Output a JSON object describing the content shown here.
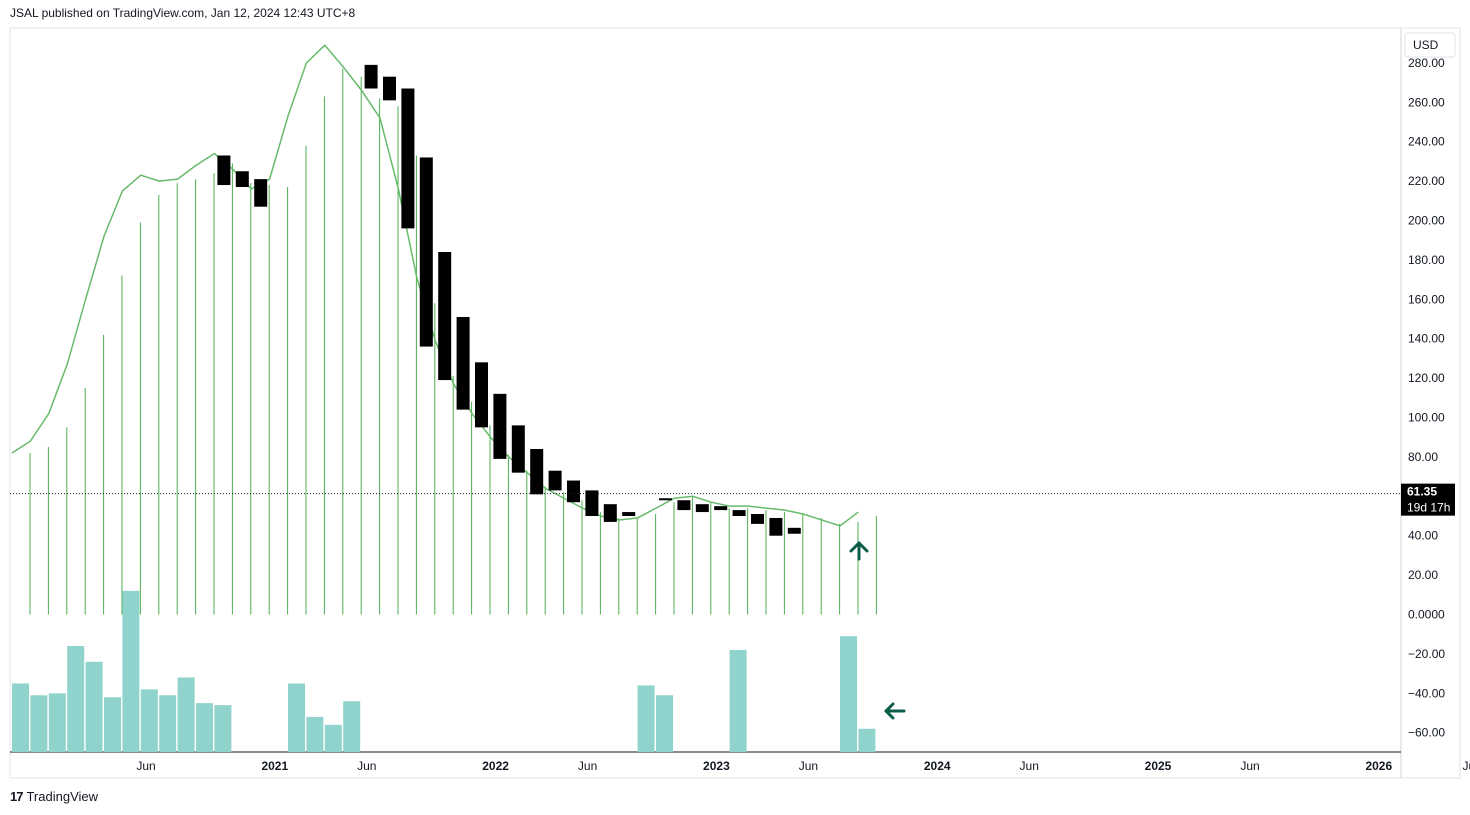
{
  "header": {
    "text": "JSAL published on TradingView.com, Jan 12, 2024 12:43 UTC+8"
  },
  "footer": {
    "logo": "17",
    "brand": "TradingView"
  },
  "currency_button": "USD",
  "colors": {
    "bar": "#000000",
    "ma_line": "#66bb6a",
    "volume_line": "#4caf50",
    "histogram": "#8fd3cc",
    "arrow": "#0b5d4a",
    "price_tag_bg": "#000000"
  },
  "chart_data": {
    "type": "candlestick",
    "title": "",
    "ylim": [
      -70,
      290
    ],
    "y_ticks": [
      "280.00",
      "260.00",
      "240.00",
      "220.00",
      "200.00",
      "180.00",
      "160.00",
      "140.00",
      "120.00",
      "100.00",
      "80.00",
      "40.00",
      "20.00",
      "0.0000",
      "−20.00",
      "−40.00",
      "−60.00"
    ],
    "y_tick_values": [
      280,
      260,
      240,
      220,
      200,
      180,
      160,
      140,
      120,
      100,
      80,
      40,
      20,
      0,
      -20,
      -40,
      -60
    ],
    "x_ticks": [
      {
        "label": "Jun",
        "bold": false,
        "month": 5
      },
      {
        "label": "2021",
        "bold": true,
        "month": 12
      },
      {
        "label": "Jun",
        "bold": false,
        "month": 17
      },
      {
        "label": "2022",
        "bold": true,
        "month": 24
      },
      {
        "label": "Jun",
        "bold": false,
        "month": 29
      },
      {
        "label": "2023",
        "bold": true,
        "month": 36
      },
      {
        "label": "Jun",
        "bold": false,
        "month": 41
      },
      {
        "label": "2024",
        "bold": true,
        "month": 48
      },
      {
        "label": "Jun",
        "bold": false,
        "month": 53
      },
      {
        "label": "2025",
        "bold": true,
        "month": 60
      },
      {
        "label": "Jun",
        "bold": false,
        "month": 65
      },
      {
        "label": "2026",
        "bold": true,
        "month": 72
      },
      {
        "label": "Jur",
        "bold": false,
        "month": 77
      }
    ],
    "candles": [
      {
        "m": 11,
        "o": 233,
        "c": 218
      },
      {
        "m": 12,
        "o": 225,
        "c": 217
      },
      {
        "m": 13,
        "o": 221,
        "c": 207
      },
      {
        "m": 19,
        "o": 279,
        "c": 267
      },
      {
        "m": 20,
        "o": 273,
        "c": 261
      },
      {
        "m": 21,
        "o": 267,
        "c": 196
      },
      {
        "m": 22,
        "o": 232,
        "c": 136
      },
      {
        "m": 23,
        "o": 184,
        "c": 119
      },
      {
        "m": 24,
        "o": 151,
        "c": 104
      },
      {
        "m": 25,
        "o": 128,
        "c": 95
      },
      {
        "m": 26,
        "o": 112,
        "c": 79
      },
      {
        "m": 27,
        "o": 96,
        "c": 72
      },
      {
        "m": 28,
        "o": 84,
        "c": 61
      },
      {
        "m": 29,
        "o": 73,
        "c": 63
      },
      {
        "m": 30,
        "o": 68,
        "c": 57
      },
      {
        "m": 31,
        "o": 63,
        "c": 50
      },
      {
        "m": 32,
        "o": 56,
        "c": 47
      },
      {
        "m": 33,
        "o": 52,
        "c": 50
      },
      {
        "m": 35,
        "o": 59,
        "c": 59
      },
      {
        "m": 36,
        "o": 58,
        "c": 53
      },
      {
        "m": 37,
        "o": 56,
        "c": 52
      },
      {
        "m": 38,
        "o": 55,
        "c": 53
      },
      {
        "m": 39,
        "o": 53,
        "c": 50
      },
      {
        "m": 40,
        "o": 51,
        "c": 46
      },
      {
        "m": 41,
        "o": 49,
        "c": 40
      },
      {
        "m": 42,
        "o": 44,
        "c": 41
      }
    ],
    "ma_series": {
      "months": [
        0,
        1,
        2,
        3,
        4,
        5,
        6,
        7,
        8,
        9,
        10,
        11,
        12,
        13,
        14,
        15,
        16,
        17,
        18,
        19,
        20,
        21,
        22,
        23,
        24,
        25,
        26,
        27,
        28,
        29,
        30,
        31,
        32,
        33,
        34,
        35,
        36,
        37,
        38,
        39,
        40,
        41,
        42,
        43,
        44,
        45,
        46
      ],
      "values": [
        82,
        88,
        102,
        127,
        160,
        192,
        215,
        223,
        220,
        221,
        228,
        234,
        226,
        216,
        221,
        253,
        280,
        289,
        278,
        266,
        252,
        216,
        171,
        139,
        117,
        102,
        90,
        80,
        72,
        64,
        59,
        54,
        50,
        48,
        49,
        54,
        59,
        60,
        57,
        55,
        55,
        54,
        53,
        51,
        48,
        45,
        52
      ]
    },
    "volume_lines": {
      "months": [
        0,
        1,
        2,
        3,
        4,
        5,
        6,
        7,
        8,
        9,
        10,
        11,
        12,
        13,
        14,
        15,
        16,
        17,
        18,
        19,
        20,
        21,
        22,
        23,
        24,
        25,
        26,
        27,
        28,
        29,
        30,
        31,
        32,
        33,
        34,
        35,
        36,
        37,
        38,
        39,
        40,
        41,
        42,
        43,
        44,
        45,
        46
      ],
      "heights": [
        82,
        85,
        95,
        115,
        142,
        172,
        199,
        213,
        219,
        221,
        224,
        229,
        219,
        218,
        217,
        238,
        263,
        277,
        273,
        262,
        258,
        233,
        158,
        121,
        108,
        96,
        81,
        73,
        65,
        62,
        58,
        52,
        49,
        49,
        51,
        57,
        60,
        57,
        54,
        54,
        53,
        52,
        51,
        49,
        46,
        47,
        50
      ]
    },
    "histogram": {
      "months": [
        0,
        1,
        2,
        3,
        4,
        5,
        6,
        7,
        8,
        9,
        10,
        11,
        15,
        16,
        17,
        18,
        34,
        35,
        39,
        45,
        46
      ],
      "values": [
        -35,
        -41,
        -40,
        -16,
        -24,
        -42,
        12,
        -38,
        -41,
        -32,
        -45,
        -46,
        -35,
        -52,
        -56,
        -44,
        -36,
        -41,
        -18,
        -11,
        -58
      ]
    },
    "last_price": "61.35",
    "countdown": "19d 17h",
    "last_price_value": 61.35
  }
}
